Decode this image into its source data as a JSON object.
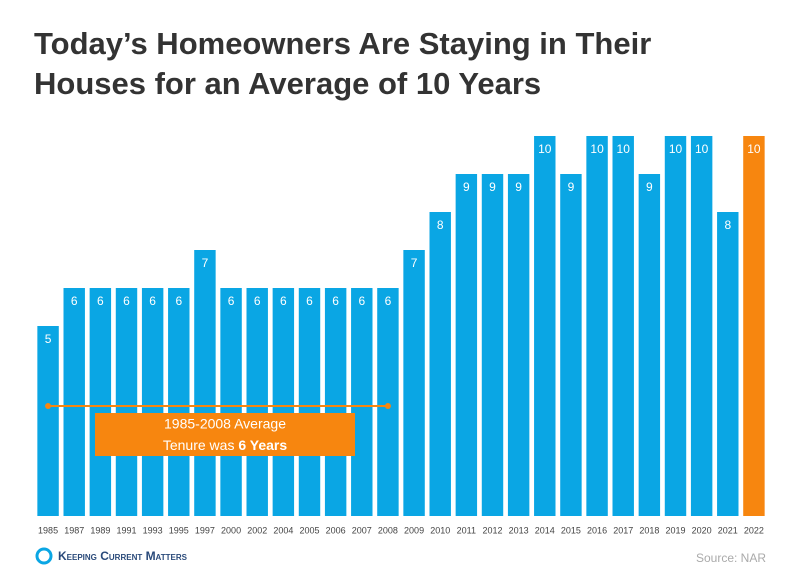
{
  "chart_data": {
    "type": "bar",
    "title": [
      "Today’s Homeowners Are Staying in Their",
      "Houses for an Average of 10 Years"
    ],
    "categories": [
      "1985",
      "1987",
      "1989",
      "1991",
      "1993",
      "1995",
      "1997",
      "2000",
      "2002",
      "2004",
      "2005",
      "2006",
      "2007",
      "2008",
      "2009",
      "2010",
      "2011",
      "2012",
      "2013",
      "2014",
      "2015",
      "2016",
      "2017",
      "2018",
      "2019",
      "2020",
      "2021",
      "2022"
    ],
    "values": [
      5,
      6,
      6,
      6,
      6,
      6,
      7,
      6,
      6,
      6,
      6,
      6,
      6,
      6,
      7,
      8,
      9,
      9,
      9,
      10,
      9,
      10,
      10,
      9,
      10,
      10,
      8,
      10
    ],
    "colors": [
      "#0aa6e4",
      "#0aa6e4",
      "#0aa6e4",
      "#0aa6e4",
      "#0aa6e4",
      "#0aa6e4",
      "#0aa6e4",
      "#0aa6e4",
      "#0aa6e4",
      "#0aa6e4",
      "#0aa6e4",
      "#0aa6e4",
      "#0aa6e4",
      "#0aa6e4",
      "#0aa6e4",
      "#0aa6e4",
      "#0aa6e4",
      "#0aa6e4",
      "#0aa6e4",
      "#0aa6e4",
      "#0aa6e4",
      "#0aa6e4",
      "#0aa6e4",
      "#0aa6e4",
      "#0aa6e4",
      "#0aa6e4",
      "#0aa6e4",
      "#f7860f"
    ],
    "ylim": [
      0,
      10
    ],
    "annotation": {
      "line1": "1985-2008 Average",
      "line2": "Tenure was",
      "bold": "6 Years",
      "color": "#f7860f"
    },
    "logo": "Keeping Current Matters",
    "source": "Source: NAR"
  }
}
